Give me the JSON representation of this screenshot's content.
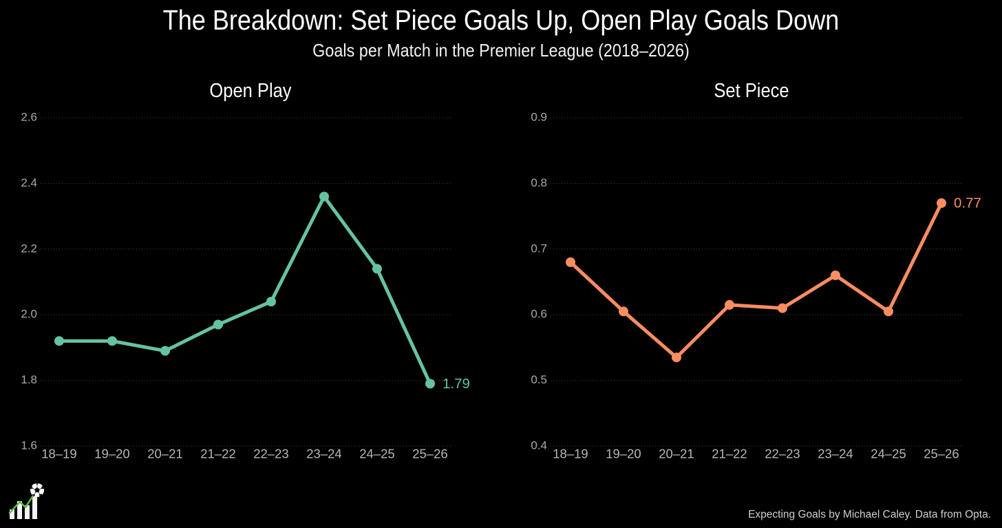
{
  "page": {
    "title": "The Breakdown: Set Piece Goals Up, Open Play Goals Down",
    "subtitle": "Goals per Match in the Premier League (2018–2026)",
    "background_color": "#000000",
    "footer_credit": "Expecting Goals by Michael Caley. Data from Opta.",
    "logo_icon": "soccer-ball-bar-trend-icon"
  },
  "chart_data": [
    {
      "type": "line",
      "title": "Open Play",
      "categories": [
        "18–19",
        "19–20",
        "20–21",
        "21–22",
        "22–23",
        "23–24",
        "24–25",
        "25–26"
      ],
      "values": [
        1.92,
        1.92,
        1.89,
        1.97,
        2.04,
        2.36,
        2.14,
        1.79
      ],
      "end_label": "1.79",
      "color": "#66c2a5",
      "ylim": [
        1.6,
        2.6
      ],
      "yticks": [
        1.6,
        1.8,
        2.0,
        2.2,
        2.4,
        2.6
      ],
      "xlabel": "",
      "ylabel": "",
      "grid": "horizontal-dotted",
      "legend": "none",
      "marker": "circle"
    },
    {
      "type": "line",
      "title": "Set Piece",
      "categories": [
        "18–19",
        "19–20",
        "20–21",
        "21–22",
        "22–23",
        "23–24",
        "24–25",
        "25–26"
      ],
      "values": [
        0.68,
        0.605,
        0.535,
        0.615,
        0.61,
        0.66,
        0.605,
        0.77
      ],
      "end_label": "0.77",
      "color": "#fc8d62",
      "ylim": [
        0.4,
        0.9
      ],
      "yticks": [
        0.4,
        0.5,
        0.6,
        0.7,
        0.8,
        0.9
      ],
      "xlabel": "",
      "ylabel": "",
      "grid": "horizontal-dotted",
      "legend": "none",
      "marker": "circle"
    }
  ]
}
